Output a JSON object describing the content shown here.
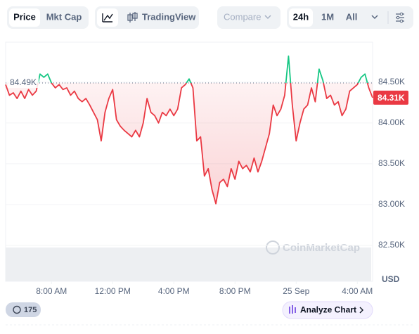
{
  "toolbar": {
    "price": "Price",
    "mkt_cap": "Mkt Cap",
    "tradingview": "TradingView",
    "compare": "Compare",
    "range_24h": "24h",
    "range_1m": "1M",
    "range_all": "All"
  },
  "footer": {
    "history_count": "175",
    "analyze": "Analyze Chart"
  },
  "watermark": "CoinMarketCap",
  "chart_data": {
    "type": "line",
    "currency": "USD",
    "x": [
      5,
      5.25,
      5.5,
      5.75,
      6,
      6.25,
      6.5,
      6.75,
      7,
      7.25,
      7.5,
      7.75,
      8,
      8.25,
      8.5,
      8.75,
      9,
      9.25,
      9.5,
      9.75,
      10,
      10.25,
      10.5,
      10.75,
      11,
      11.25,
      11.5,
      11.75,
      12,
      12.25,
      12.5,
      12.75,
      13,
      13.25,
      13.5,
      13.75,
      14,
      14.25,
      14.5,
      14.75,
      15,
      15.25,
      15.5,
      15.75,
      16,
      16.25,
      16.5,
      16.75,
      17,
      17.25,
      17.5,
      17.75,
      18,
      18.25,
      18.5,
      18.75,
      19,
      19.25,
      19.5,
      19.75,
      20,
      20.25,
      20.5,
      20.75,
      21,
      21.25,
      21.5,
      21.75,
      22,
      22.25,
      22.5,
      22.75,
      23,
      23.25,
      23.5,
      23.75,
      24,
      24.25,
      24.5,
      24.75,
      25,
      25.25,
      25.5,
      25.75,
      26,
      26.25,
      26.5,
      26.75,
      27,
      27.25,
      27.5,
      27.75,
      28,
      28.25,
      28.5,
      28.75,
      29
    ],
    "series": [
      {
        "name": "Price",
        "color": "#ea3943",
        "up_color": "#16c784",
        "values": [
          84470,
          84340,
          84370,
          84300,
          84390,
          84300,
          84410,
          84340,
          84390,
          84600,
          84560,
          84600,
          84490,
          84430,
          84470,
          84410,
          84430,
          84340,
          84390,
          84300,
          84260,
          84300,
          84220,
          84130,
          84040,
          83780,
          84130,
          84300,
          84410,
          84040,
          83960,
          83910,
          83870,
          83830,
          83910,
          83830,
          84000,
          84300,
          84130,
          84090,
          84000,
          84130,
          84090,
          84170,
          84090,
          84170,
          84430,
          84470,
          84540,
          84430,
          83780,
          83830,
          83350,
          83440,
          83180,
          83010,
          83270,
          83310,
          83220,
          83440,
          83310,
          83530,
          83440,
          83480,
          83400,
          83570,
          83400,
          83530,
          83700,
          83870,
          84220,
          84090,
          84170,
          84340,
          84820,
          84220,
          83780,
          84000,
          84170,
          84220,
          84430,
          84260,
          84660,
          84520,
          84300,
          84340,
          84220,
          84260,
          84090,
          84170,
          84390,
          84430,
          84470,
          84560,
          84600,
          84430,
          84310
        ]
      }
    ],
    "baseline": {
      "value": 84490,
      "label": "84.49K"
    },
    "current": {
      "value": 84310,
      "label": "84.31K"
    },
    "xlim": [
      5,
      29
    ],
    "xticks": [
      {
        "value": 8,
        "label": "8:00 AM"
      },
      {
        "value": 12,
        "label": "12:00 PM"
      },
      {
        "value": 16,
        "label": "4:00 PM"
      },
      {
        "value": 20,
        "label": "8:00 PM"
      },
      {
        "value": 24,
        "label": "25 Sep"
      },
      {
        "value": 28,
        "label": "4:00 AM"
      }
    ],
    "ylim": [
      82060,
      84990
    ],
    "yticks": [
      {
        "value": 82500,
        "label": "82.50K"
      },
      {
        "value": 83000,
        "label": "83.00K"
      },
      {
        "value": 83500,
        "label": "83.50K"
      },
      {
        "value": 84000,
        "label": "84.00K"
      },
      {
        "value": 84500,
        "label": "84.50K"
      }
    ]
  }
}
